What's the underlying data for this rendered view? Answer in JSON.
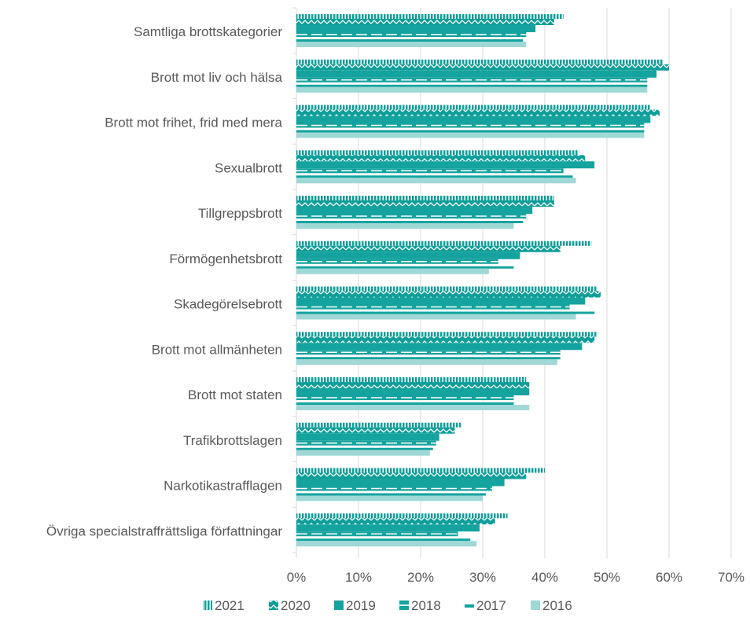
{
  "chart_data": {
    "type": "bar",
    "orientation": "horizontal",
    "title": "",
    "xlabel": "",
    "ylabel": "",
    "xlim": [
      0,
      70
    ],
    "x_ticks": [
      "0%",
      "10%",
      "20%",
      "30%",
      "40%",
      "50%",
      "60%",
      "70%"
    ],
    "grid": "vertical",
    "legend_position": "bottom",
    "categories": [
      "Samtliga brottskategorier",
      "Brott mot liv och hälsa",
      "Brott mot frihet, frid med mera",
      "Sexualbrott",
      "Tillgreppsbrott",
      "Förmögenhetsbrott",
      "Skadegörelsebrott",
      "Brott mot allmänheten",
      "Brott mot staten",
      "Trafikbrottslagen",
      "Narkotikastrafflagen",
      "Övriga specialstraffrättsliga författningar"
    ],
    "series": [
      {
        "name": "2021",
        "pattern": "vertical-stripes",
        "color": "#0f9e99",
        "values": [
          43,
          59,
          57,
          45.5,
          41.5,
          47.5,
          48.5,
          48.5,
          37,
          26.5,
          40,
          34
        ]
      },
      {
        "name": "2020",
        "pattern": "zigzag",
        "color": "#0f9e99",
        "values": [
          41.5,
          60,
          58.5,
          46.5,
          41.5,
          42.5,
          49,
          48,
          37.5,
          25.5,
          37,
          32
        ]
      },
      {
        "name": "2019",
        "pattern": "solid",
        "color": "#14a39e",
        "values": [
          38.5,
          58,
          57,
          48,
          38,
          36,
          46.5,
          46,
          37.5,
          23,
          33.5,
          29.5
        ]
      },
      {
        "name": "2018",
        "pattern": "dashed-line",
        "color": "#14a39e",
        "values": [
          37,
          56.5,
          56,
          43,
          37,
          32.5,
          44,
          42.5,
          35,
          22.5,
          31.5,
          26
        ]
      },
      {
        "name": "2017",
        "pattern": "thin-bar",
        "color": "#14a39e",
        "values": [
          36.5,
          56.5,
          56,
          44.5,
          36.5,
          35,
          48,
          42.5,
          35,
          22,
          30.5,
          28
        ]
      },
      {
        "name": "2016",
        "pattern": "solid",
        "color": "#9fd8d6",
        "values": [
          37,
          56.5,
          56,
          45,
          35,
          31,
          45,
          42,
          37.5,
          21.5,
          30,
          29
        ]
      }
    ]
  }
}
